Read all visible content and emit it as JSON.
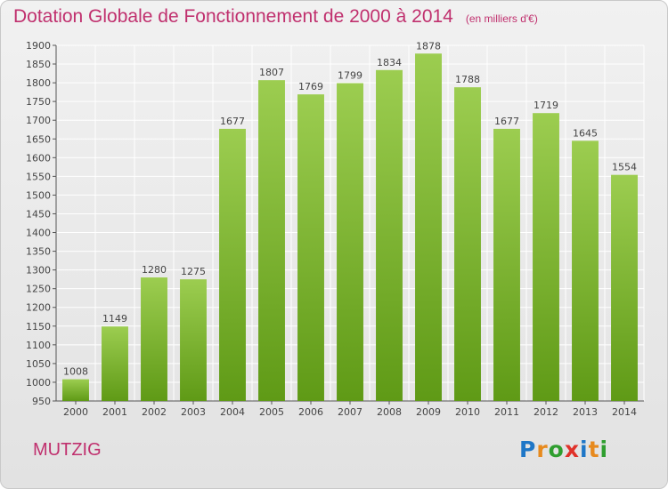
{
  "title": "Dotation Globale de Fonctionnement de 2000 à 2014",
  "subtitle": "(en milliers d'€)",
  "city": "MUTZIG",
  "logo": {
    "text": "Proxiti",
    "letter_colors": [
      "#1f77c7",
      "#e78a1e",
      "#2f9e2f",
      "#e0322a",
      "#1f77c7",
      "#e78a1e",
      "#2f9e2f"
    ]
  },
  "colors": {
    "title": "#c0306e",
    "bar_top": "#9ccd50",
    "bar_bottom": "#5f9a16",
    "grid": "#ffffff"
  },
  "chart_data": {
    "type": "bar",
    "title": "Dotation Globale de Fonctionnement de 2000 à 2014",
    "subtitle": "(en milliers d'€)",
    "categories": [
      "2000",
      "2001",
      "2002",
      "2003",
      "2004",
      "2005",
      "2006",
      "2007",
      "2008",
      "2009",
      "2010",
      "2011",
      "2012",
      "2013",
      "2014"
    ],
    "values": [
      1008,
      1149,
      1280,
      1275,
      1677,
      1807,
      1769,
      1799,
      1834,
      1878,
      1788,
      1677,
      1719,
      1645,
      1554
    ],
    "ylim": [
      950,
      1900
    ],
    "yticks": [
      950,
      1000,
      1050,
      1100,
      1150,
      1200,
      1250,
      1300,
      1350,
      1400,
      1450,
      1500,
      1550,
      1600,
      1650,
      1700,
      1750,
      1800,
      1850,
      1900
    ],
    "grid": true,
    "data_labels": true
  }
}
